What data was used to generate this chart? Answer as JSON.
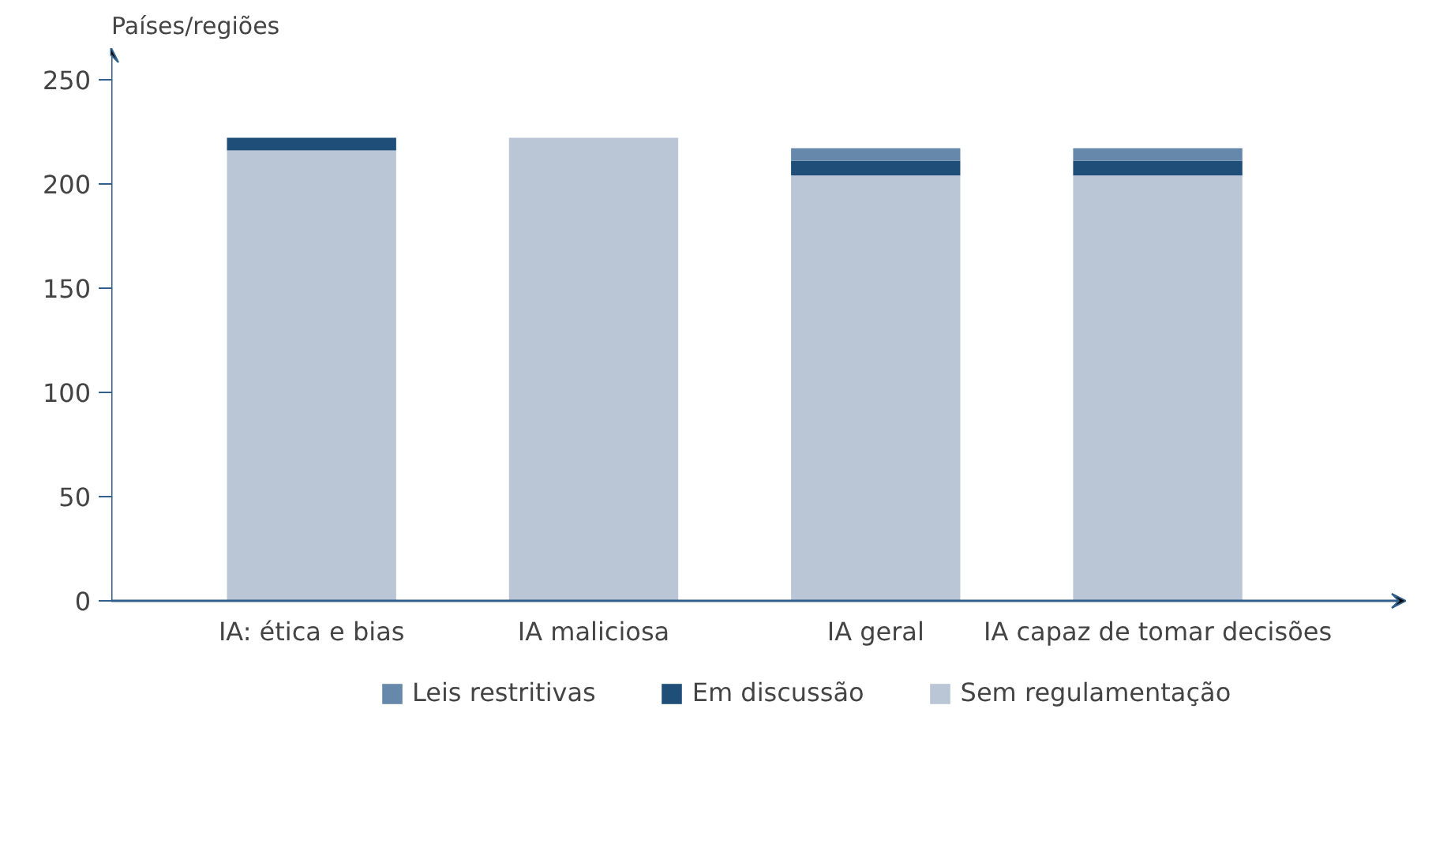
{
  "chart_data": {
    "type": "bar",
    "stacked": true,
    "ylabel": "Países/regiões",
    "categories": [
      "IA: ética e bias",
      "IA maliciosa",
      "IA geral",
      "IA capaz de tomar decisões"
    ],
    "series": [
      {
        "name": "Sem regulamentação",
        "color": "#bac6d6",
        "values": [
          216,
          222,
          204,
          204
        ]
      },
      {
        "name": "Em discussão",
        "color": "#1f4e79",
        "values": [
          6,
          0,
          7,
          7
        ]
      },
      {
        "name": "Leis restritivas",
        "color": "#6689ab",
        "values": [
          0,
          0,
          6,
          6
        ]
      }
    ],
    "ylim": [
      0,
      265
    ],
    "yticks": [
      0,
      50,
      100,
      150,
      200,
      250
    ],
    "grid": false,
    "legend": "bottom"
  }
}
